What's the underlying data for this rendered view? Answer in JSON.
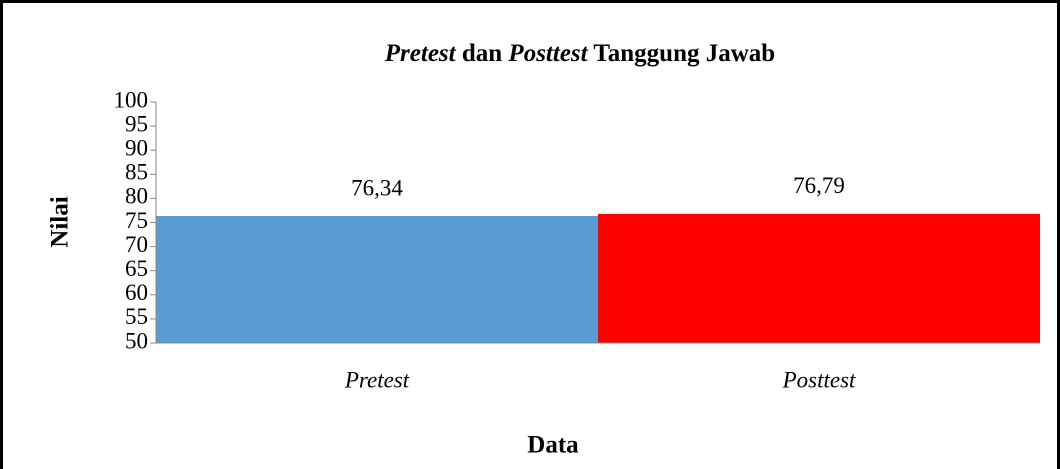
{
  "chart_data": {
    "type": "bar",
    "title": [
      "Pretest",
      " dan ",
      "Posttest",
      " Tanggung Jawab"
    ],
    "x_label": "Data",
    "y_label": "Nilai",
    "categories": [
      "Pretest",
      "Posttest"
    ],
    "values": [
      76.34,
      76.79
    ],
    "value_labels": [
      "76,34",
      "76,79"
    ],
    "colors": [
      "#5b9bd5",
      "#ff0000"
    ],
    "ylim": [
      50,
      100
    ],
    "yticks": [
      50,
      55,
      60,
      65,
      70,
      75,
      80,
      85,
      90,
      95,
      100
    ],
    "grid": false
  }
}
